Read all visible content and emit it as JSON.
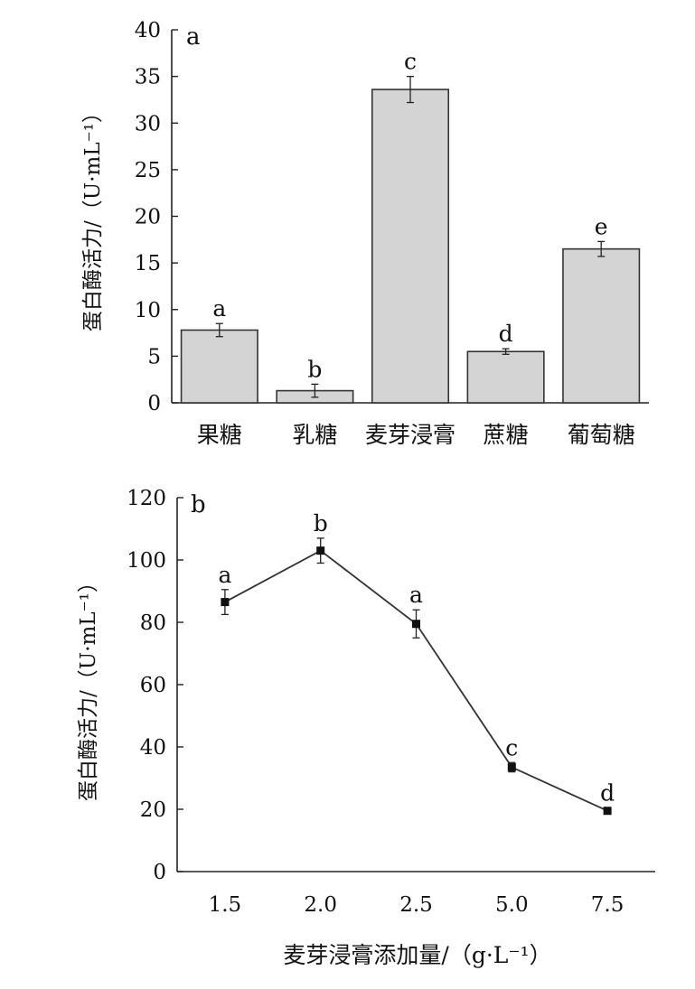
{
  "chart_data": [
    {
      "type": "bar",
      "panel_label": "a",
      "ylabel": "蛋白酶活力/（U·mL⁻¹）",
      "xlabel": "",
      "ylim": [
        0,
        40
      ],
      "yticks": [
        0,
        5,
        10,
        15,
        20,
        25,
        30,
        35,
        40
      ],
      "categories": [
        "果糖",
        "乳糖",
        "麦芽浸膏",
        "蔗糖",
        "葡萄糖"
      ],
      "values": [
        7.8,
        1.3,
        33.6,
        5.5,
        16.5
      ],
      "errors": [
        0.7,
        0.7,
        1.4,
        0.3,
        0.8
      ],
      "significance": [
        "a",
        "b",
        "c",
        "d",
        "e"
      ],
      "grid": false,
      "colors": {
        "bar_fill": "#d4d4d4",
        "bar_stroke": "#333333"
      }
    },
    {
      "type": "line",
      "panel_label": "b",
      "ylabel": "蛋白酶活力/（U·mL⁻¹）",
      "xlabel": "麦芽浸膏添加量/（g·L⁻¹）",
      "ylim": [
        0,
        120
      ],
      "yticks": [
        0,
        20,
        40,
        60,
        80,
        100,
        120
      ],
      "categories": [
        "1.5",
        "2.0",
        "2.5",
        "5.0",
        "7.5"
      ],
      "values": [
        86.5,
        103,
        79.5,
        33.5,
        19.5
      ],
      "errors": [
        4,
        4,
        4.5,
        1.5,
        1
      ],
      "significance": [
        "a",
        "b",
        "a",
        "c",
        "d"
      ],
      "grid": false,
      "colors": {
        "line": "#333333",
        "marker": "#111111"
      }
    }
  ]
}
